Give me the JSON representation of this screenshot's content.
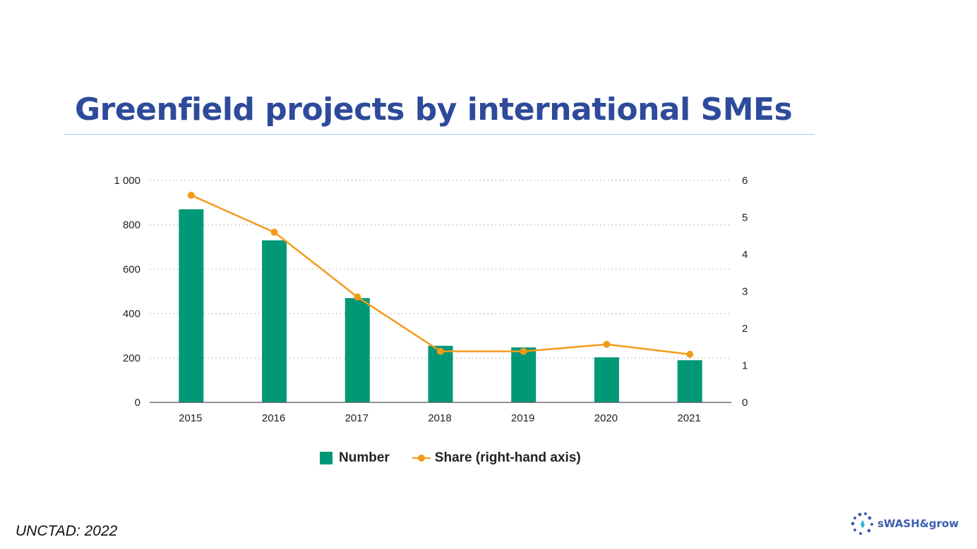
{
  "slide": {
    "title": "Greenfield projects by international SMEs",
    "source": "UNCTAD: 2022",
    "logo_text": "sWASH&grow"
  },
  "colors": {
    "title": "#2e4a9a",
    "bar": "#009877",
    "line": "#f39b18",
    "rule": "#8fd6df"
  },
  "chart_data": {
    "type": "bar",
    "categories": [
      "2015",
      "2016",
      "2017",
      "2018",
      "2019",
      "2020",
      "2021"
    ],
    "series": [
      {
        "name": "Number",
        "type": "bar",
        "axis": "left",
        "values": [
          870,
          730,
          470,
          255,
          248,
          203,
          190
        ]
      },
      {
        "name": "Share (right-hand axis)",
        "type": "line",
        "axis": "right",
        "values": [
          5.6,
          4.6,
          2.85,
          1.38,
          1.38,
          1.57,
          1.3
        ]
      }
    ],
    "y_left": {
      "ylim": [
        0,
        1000
      ],
      "ticks": [
        0,
        200,
        400,
        600,
        800,
        1000
      ],
      "tick_labels": [
        "0",
        "200",
        "400",
        "600",
        "800",
        "1 000"
      ]
    },
    "y_right": {
      "ylim": [
        0,
        6
      ],
      "ticks": [
        0,
        1,
        2,
        3,
        4,
        5,
        6
      ],
      "tick_labels": [
        "0",
        "1",
        "2",
        "3",
        "4",
        "5",
        "6"
      ]
    },
    "grid": "dotted horizontal",
    "legend": "bottom"
  }
}
